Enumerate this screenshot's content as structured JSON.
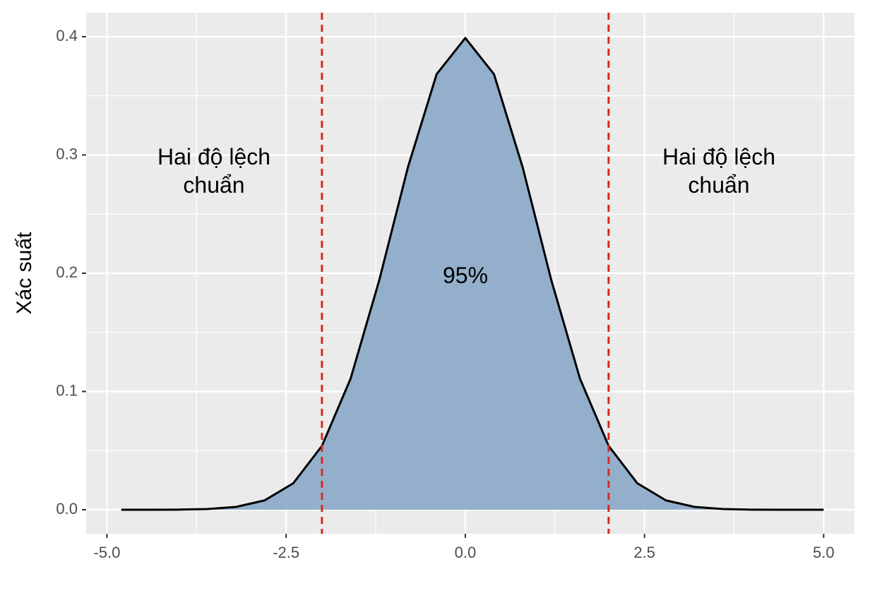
{
  "chart_data": {
    "type": "area",
    "y_label": "Xác suất",
    "x": [
      -4.8,
      -4.4,
      -4,
      -3.6,
      -3.2,
      -2.8,
      -2.4,
      -2,
      -1.6,
      -1.2,
      -0.8,
      -0.4,
      0,
      0.4,
      0.8,
      1.2,
      1.6,
      2,
      2.4,
      2.8,
      3.2,
      3.6,
      4,
      4.4,
      4.8,
      5
    ],
    "values": [
      0,
      0,
      0.0001,
      0.0006,
      0.0024,
      0.0079,
      0.0224,
      0.054,
      0.1109,
      0.1942,
      0.2897,
      0.3683,
      0.3989,
      0.3683,
      0.2897,
      0.1942,
      0.1109,
      0.054,
      0.0224,
      0.0079,
      0.0024,
      0.0006,
      0.0001,
      0,
      0,
      0
    ],
    "color": "#8eacca",
    "line_color": "#000000",
    "vlines": [
      -2,
      2
    ],
    "vline_color": "#d62b1f",
    "annotations": [
      "Hai độ lệch chuẩn",
      "95%",
      "Hai độ lệch chuẩn"
    ],
    "xlim": [
      -5.29,
      5.43
    ],
    "ylim": [
      -0.0203,
      0.4203
    ],
    "xticks": [
      {
        "value": -5,
        "label": "-5.0"
      },
      -2.5,
      {
        "value": 0,
        "label": "0.0"
      },
      2.5,
      {
        "value": 5,
        "label": "5.0"
      }
    ],
    "yticks": [
      {
        "value": 0,
        "label": "0.0"
      },
      0.1,
      0.2,
      0.3,
      0.4
    ],
    "grid": true
  }
}
